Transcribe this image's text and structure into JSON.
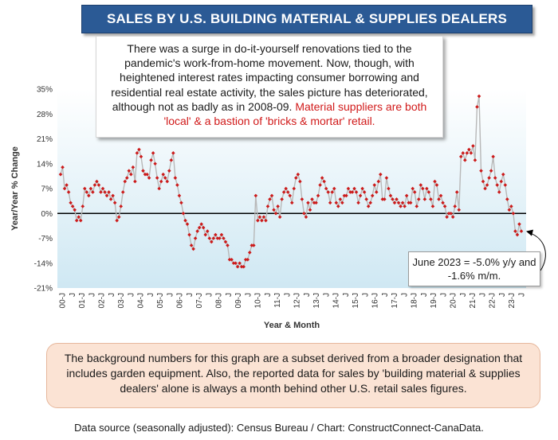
{
  "title": "SALES BY U.S. BUILDING MATERIAL & SUPPLIES DEALERS",
  "callout": {
    "text_main": "There was a surge in do-it-yourself renovations tied to the pandemic's work-from-home movement. Now, though, with heightened interest rates impacting consumer borrowing and residential real estate activity, the sales picture has deteriorated, although not as badly as in 2008-09.",
    "text_red": "Material suppliers are both 'local' & a bastion of 'bricks & mortar' retail."
  },
  "annotation": {
    "line1": "June 2023 = -5.0% y/y and",
    "line2": "-1.6% m/m."
  },
  "note": "The background numbers for this graph are a subset derived from a broader designation that includes garden equipment. Also, the reported data for sales by 'building material & supplies dealers' alone is always a month behind other U.S. retail sales figures.",
  "source": "Data source (seasonally adjusted): Census Bureau / Chart: ConstructConnect-CanaData.",
  "colors": {
    "title_bg": "#2b5a95",
    "series_line": "#b8b8b8",
    "markers": "#cc1a1a",
    "plot_bg_top": "#ffffff",
    "plot_bg_bottom": "#cfe8f3",
    "highlight": "#d11a1a",
    "note_bg": "#fbe3d4"
  },
  "chart_data": {
    "type": "line",
    "title": "SALES BY U.S. BUILDING MATERIAL & SUPPLIES DEALERS",
    "xlabel": "Year & Month",
    "ylabel": "Year/Year % Change",
    "ylim": [
      -21,
      35
    ],
    "yticks": [
      "-21%",
      "-14%",
      "-7%",
      "0%",
      "7%",
      "14%",
      "21%",
      "28%",
      "35%"
    ],
    "grid": false,
    "legend": "none",
    "x_ticks": [
      "00-J",
      "J",
      "01-J",
      "J",
      "02-J",
      "J",
      "03-J",
      "J",
      "04-J",
      "J",
      "05-J",
      "J",
      "06-J",
      "J",
      "07-J",
      "J",
      "08-J",
      "J",
      "09-J",
      "J",
      "10-J",
      "J",
      "11-J",
      "J",
      "12-J",
      "J",
      "13-J",
      "J",
      "14-J",
      "J",
      "15-J",
      "J",
      "16-J",
      "J",
      "17-J",
      "J",
      "18-J",
      "J",
      "19-J",
      "J",
      "20-J",
      "J",
      "21-J",
      "J",
      "22-J",
      "J",
      "23-J",
      "J"
    ],
    "x_start": "2000-01",
    "x_end": "2023-06",
    "series": [
      {
        "values": [
          11,
          13,
          7,
          8,
          6,
          3,
          2,
          1,
          -2,
          -1,
          -2,
          2,
          7,
          6,
          5,
          7,
          6,
          8,
          9,
          8,
          6,
          7,
          6,
          5,
          6,
          4,
          5,
          3,
          -2,
          -1,
          2,
          6,
          9,
          10,
          12,
          11,
          13,
          9,
          17,
          18,
          16,
          12,
          11,
          11,
          10,
          15,
          17,
          14,
          10,
          7,
          9,
          11,
          10,
          9,
          12,
          15,
          17,
          10,
          8,
          5,
          3,
          0,
          -2,
          -3,
          -6,
          -9,
          -10,
          -7,
          -5,
          -4,
          -3,
          -4,
          -6,
          -5,
          -7,
          -8,
          -7,
          -6,
          -7,
          -7,
          -6,
          -7,
          -8,
          -9,
          -13,
          -13,
          -14,
          -14,
          -15,
          -14,
          -15,
          -15,
          -13,
          -13,
          -11,
          -9,
          -9,
          5,
          -2,
          -1,
          -2,
          -1,
          -2,
          2,
          4,
          5,
          1,
          0,
          2,
          -1,
          4,
          6,
          7,
          6,
          5,
          3,
          7,
          10,
          11,
          9,
          4,
          0,
          -1,
          3,
          1,
          4,
          3,
          3,
          5,
          8,
          10,
          9,
          7,
          6,
          3,
          6,
          7,
          3,
          2,
          4,
          3,
          5,
          5,
          7,
          6,
          6,
          7,
          6,
          3,
          5,
          7,
          6,
          4,
          2,
          3,
          5,
          8,
          6,
          9,
          11,
          4,
          4,
          10,
          7,
          5,
          4,
          3,
          4,
          3,
          2,
          3,
          2,
          5,
          3,
          3,
          7,
          6,
          2,
          4,
          8,
          7,
          4,
          7,
          6,
          4,
          2,
          9,
          8,
          4,
          5,
          3,
          2,
          -1,
          0,
          0,
          -1,
          2,
          6,
          1,
          16,
          17,
          15,
          17,
          18,
          17,
          19,
          15,
          30,
          33,
          12,
          9,
          7,
          8,
          10,
          12,
          16,
          10,
          8,
          6,
          9,
          11,
          8,
          4,
          1,
          2,
          0,
          -5,
          -6,
          -3,
          -5
        ]
      }
    ]
  }
}
